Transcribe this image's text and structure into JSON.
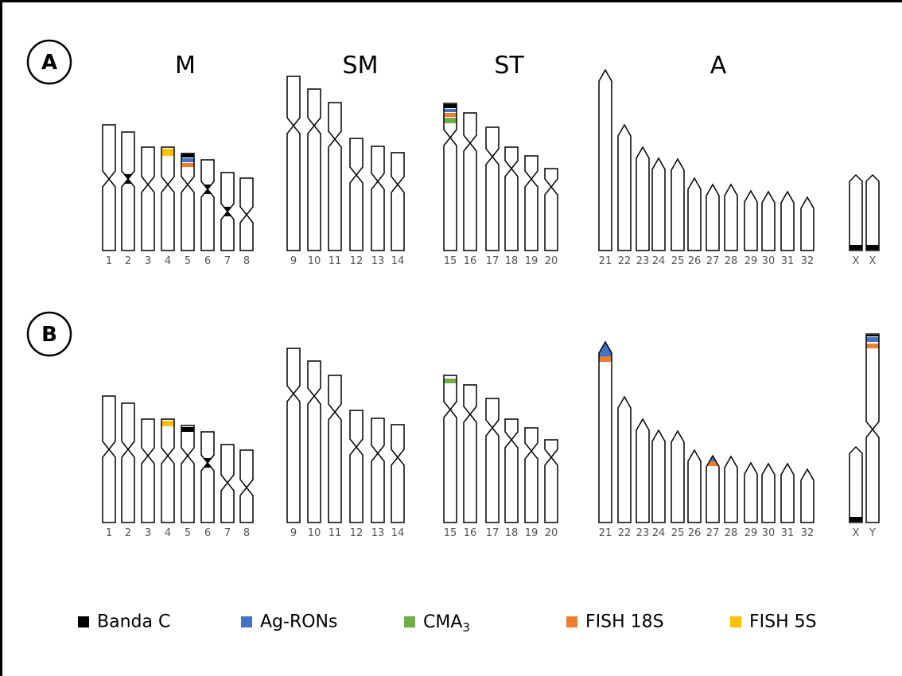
{
  "panels": [
    {
      "label": "A",
      "groups": [
        "M",
        "SM",
        "ST",
        "A"
      ],
      "chromosomes": [
        "1",
        "2",
        "3",
        "4",
        "5",
        "6",
        "7",
        "8",
        "9",
        "10",
        "11",
        "12",
        "13",
        "14",
        "15",
        "16",
        "17",
        "18",
        "19",
        "20",
        "21",
        "22",
        "23",
        "24",
        "25",
        "26",
        "27",
        "28",
        "29",
        "30",
        "31",
        "32",
        "X",
        "X"
      ]
    },
    {
      "label": "B",
      "chromosomes": [
        "1",
        "2",
        "3",
        "4",
        "5",
        "6",
        "7",
        "8",
        "9",
        "10",
        "11",
        "12",
        "13",
        "14",
        "15",
        "16",
        "17",
        "18",
        "19",
        "20",
        "21",
        "22",
        "23",
        "24",
        "25",
        "26",
        "27",
        "28",
        "29",
        "30",
        "31",
        "32",
        "X",
        "Y"
      ]
    }
  ],
  "legend": [
    {
      "label": "Banda C"
    },
    {
      "label": "Ag-RONs"
    },
    {
      "label": "CMA",
      "subscript": "3"
    },
    {
      "label": "FISH 18S"
    },
    {
      "label": "FISH 5S"
    }
  ]
}
